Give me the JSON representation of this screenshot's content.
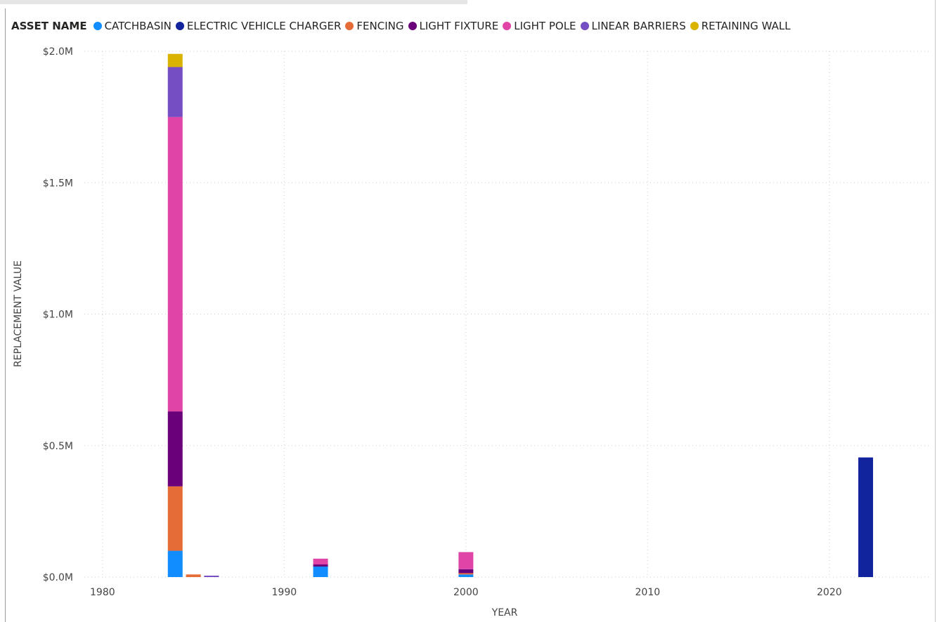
{
  "legend": {
    "title": "ASSET NAME"
  },
  "chart_data": {
    "type": "bar",
    "stacked": true,
    "xlabel": "YEAR",
    "ylabel": "REPLACEMENT VALUE",
    "xlim": [
      1979,
      2025.5
    ],
    "ylim": [
      0,
      2000000
    ],
    "x_ticks": [
      {
        "value": 1980,
        "label": "1980"
      },
      {
        "value": 1990,
        "label": "1990"
      },
      {
        "value": 2000,
        "label": "2000"
      },
      {
        "value": 2010,
        "label": "2010"
      },
      {
        "value": 2020,
        "label": "2020"
      }
    ],
    "y_ticks": [
      {
        "value": 0,
        "label": "$0.0M"
      },
      {
        "value": 500000,
        "label": "$0.5M"
      },
      {
        "value": 1000000,
        "label": "$1.0M"
      },
      {
        "value": 1500000,
        "label": "$1.5M"
      },
      {
        "value": 2000000,
        "label": "$2.0M"
      }
    ],
    "grid": true,
    "legend_position": "top-left",
    "x": [
      1984,
      1985,
      1986,
      1992,
      2000,
      2022
    ],
    "series": [
      {
        "name": "CATCHBASIN",
        "color": "#118DFF",
        "values": [
          100000,
          0,
          0,
          40000,
          10000,
          0
        ]
      },
      {
        "name": "ELECTRIC VEHICLE CHARGER",
        "color": "#12239E",
        "values": [
          0,
          0,
          0,
          0,
          0,
          455000
        ]
      },
      {
        "name": "FENCING",
        "color": "#E66C37",
        "values": [
          245000,
          10000,
          0,
          0,
          5000,
          0
        ]
      },
      {
        "name": "LIGHT FIXTURE",
        "color": "#6B007B",
        "values": [
          285000,
          0,
          0,
          8000,
          15000,
          0
        ]
      },
      {
        "name": "LIGHT POLE",
        "color": "#E044A7",
        "values": [
          1120000,
          0,
          0,
          22000,
          65000,
          0
        ]
      },
      {
        "name": "LINEAR BARRIERS",
        "color": "#744EC2",
        "values": [
          190000,
          0,
          5000,
          0,
          0,
          0
        ]
      },
      {
        "name": "RETAINING WALL",
        "color": "#D9B300",
        "values": [
          50000,
          0,
          0,
          0,
          0,
          0
        ]
      }
    ]
  }
}
